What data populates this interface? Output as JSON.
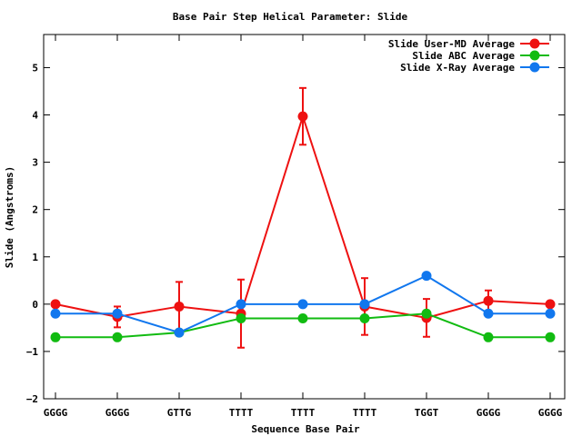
{
  "chart_data": {
    "type": "line",
    "title": "Base Pair Step Helical Parameter: Slide",
    "xlabel": "Sequence Base Pair",
    "ylabel": "Slide (Angstroms)",
    "categories": [
      "GGGG",
      "GGGG",
      "GTTG",
      "TTTT",
      "TTTT",
      "TTTT",
      "TGGT",
      "GGGG",
      "GGGG"
    ],
    "ylim": [
      -2,
      5.7
    ],
    "yticks": [
      -2,
      -1,
      0,
      1,
      2,
      3,
      4,
      5
    ],
    "grid": false,
    "legend_position": "top-right",
    "series": [
      {
        "name": "Slide User-MD Average",
        "color": "#ee1111",
        "values": [
          0.0,
          -0.27,
          -0.05,
          -0.2,
          3.97,
          -0.05,
          -0.29,
          0.07,
          0.0
        ],
        "errors": [
          0.0,
          0.22,
          0.52,
          0.72,
          0.6,
          0.6,
          0.4,
          0.22,
          0.0
        ]
      },
      {
        "name": "Slide ABC Average",
        "color": "#11bb11",
        "values": [
          -0.7,
          -0.7,
          -0.6,
          -0.3,
          -0.3,
          -0.3,
          -0.2,
          -0.7,
          -0.7
        ]
      },
      {
        "name": "Slide X-Ray Average",
        "color": "#1177ee",
        "values": [
          -0.2,
          -0.2,
          -0.6,
          0.0,
          0.0,
          0.0,
          0.6,
          -0.2,
          -0.2
        ]
      }
    ]
  }
}
